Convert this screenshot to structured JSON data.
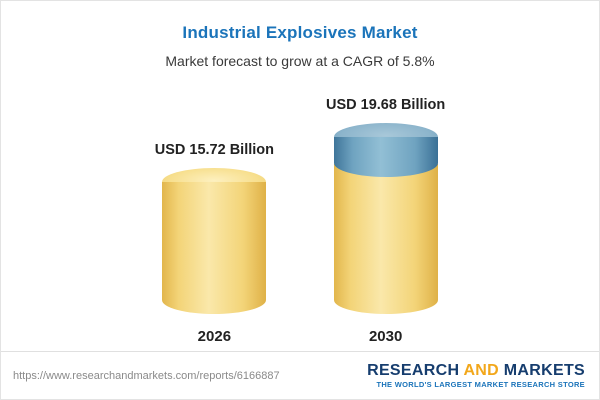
{
  "header": {
    "title": "Industrial Explosives Market",
    "subtitle": "Market forecast to grow at a CAGR of 5.8%"
  },
  "chart_data": {
    "type": "bar",
    "subtype": "cylinder-3d",
    "categories": [
      "2026",
      "2030"
    ],
    "values": [
      15.72,
      19.68
    ],
    "unit": "USD Billion",
    "value_labels": [
      "USD 15.72 Billion",
      "USD 19.68 Billion"
    ],
    "title": "Industrial Explosives Market",
    "subtitle": "Market forecast to grow at a CAGR of 5.8%",
    "cagr_percent": 5.8,
    "legend": false,
    "colors": {
      "base_bar": "#f3d478",
      "growth_segment": "#6fa3c0"
    },
    "notes": "2030 bar shows growth increment over 2026 as a blue top segment"
  },
  "footer": {
    "url": "https://www.researchandmarkets.com/reports/6166887",
    "logo": {
      "research": "RESEARCH ",
      "and": "AND",
      "markets": " MARKETS",
      "tagline": "THE WORLD'S LARGEST MARKET RESEARCH STORE"
    }
  }
}
